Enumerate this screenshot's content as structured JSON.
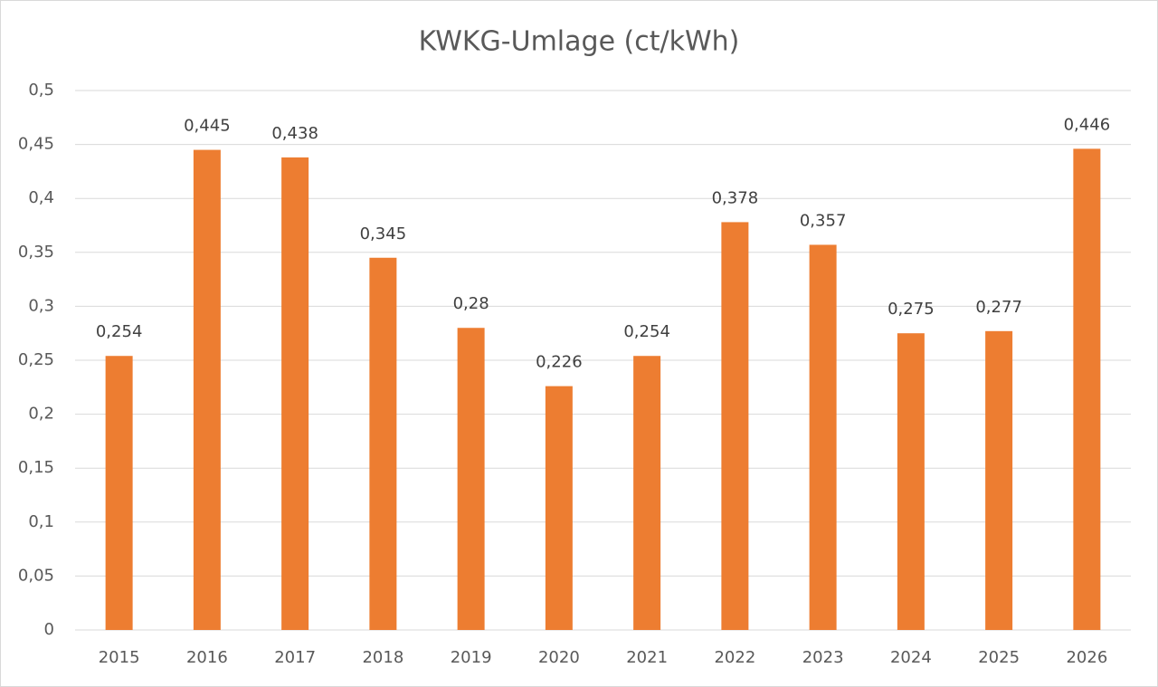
{
  "chart_data": {
    "type": "bar",
    "title": "KWKG-Umlage (ct/kWh)",
    "categories": [
      "2015",
      "2016",
      "2017",
      "2018",
      "2019",
      "2020",
      "2021",
      "2022",
      "2023",
      "2024",
      "2025",
      "2026"
    ],
    "values": [
      0.254,
      0.445,
      0.438,
      0.345,
      0.28,
      0.226,
      0.254,
      0.378,
      0.357,
      0.275,
      0.277,
      0.446
    ],
    "value_labels": [
      "0,254",
      "0,445",
      "0,438",
      "0,345",
      "0,28",
      "0,226",
      "0,254",
      "0,378",
      "0,357",
      "0,275",
      "0,277",
      "0,446"
    ],
    "color": "#ed7d31",
    "ylim": [
      0,
      0.5
    ],
    "yticks": [
      0,
      {
        "value": 0.05,
        "label": "0,05"
      },
      {
        "value": 0.1,
        "label": "0,1"
      },
      {
        "value": 0.15,
        "label": "0,15"
      },
      {
        "value": 0.2,
        "label": "0,2"
      },
      {
        "value": 0.25,
        "label": "0,25"
      },
      {
        "value": 0.3,
        "label": "0,3"
      },
      {
        "value": 0.35,
        "label": "0,35"
      },
      {
        "value": 0.4,
        "label": "0,4"
      },
      {
        "value": 0.45,
        "label": "0,45"
      },
      {
        "value": 0.5,
        "label": "0,5"
      }
    ],
    "grid": true
  }
}
